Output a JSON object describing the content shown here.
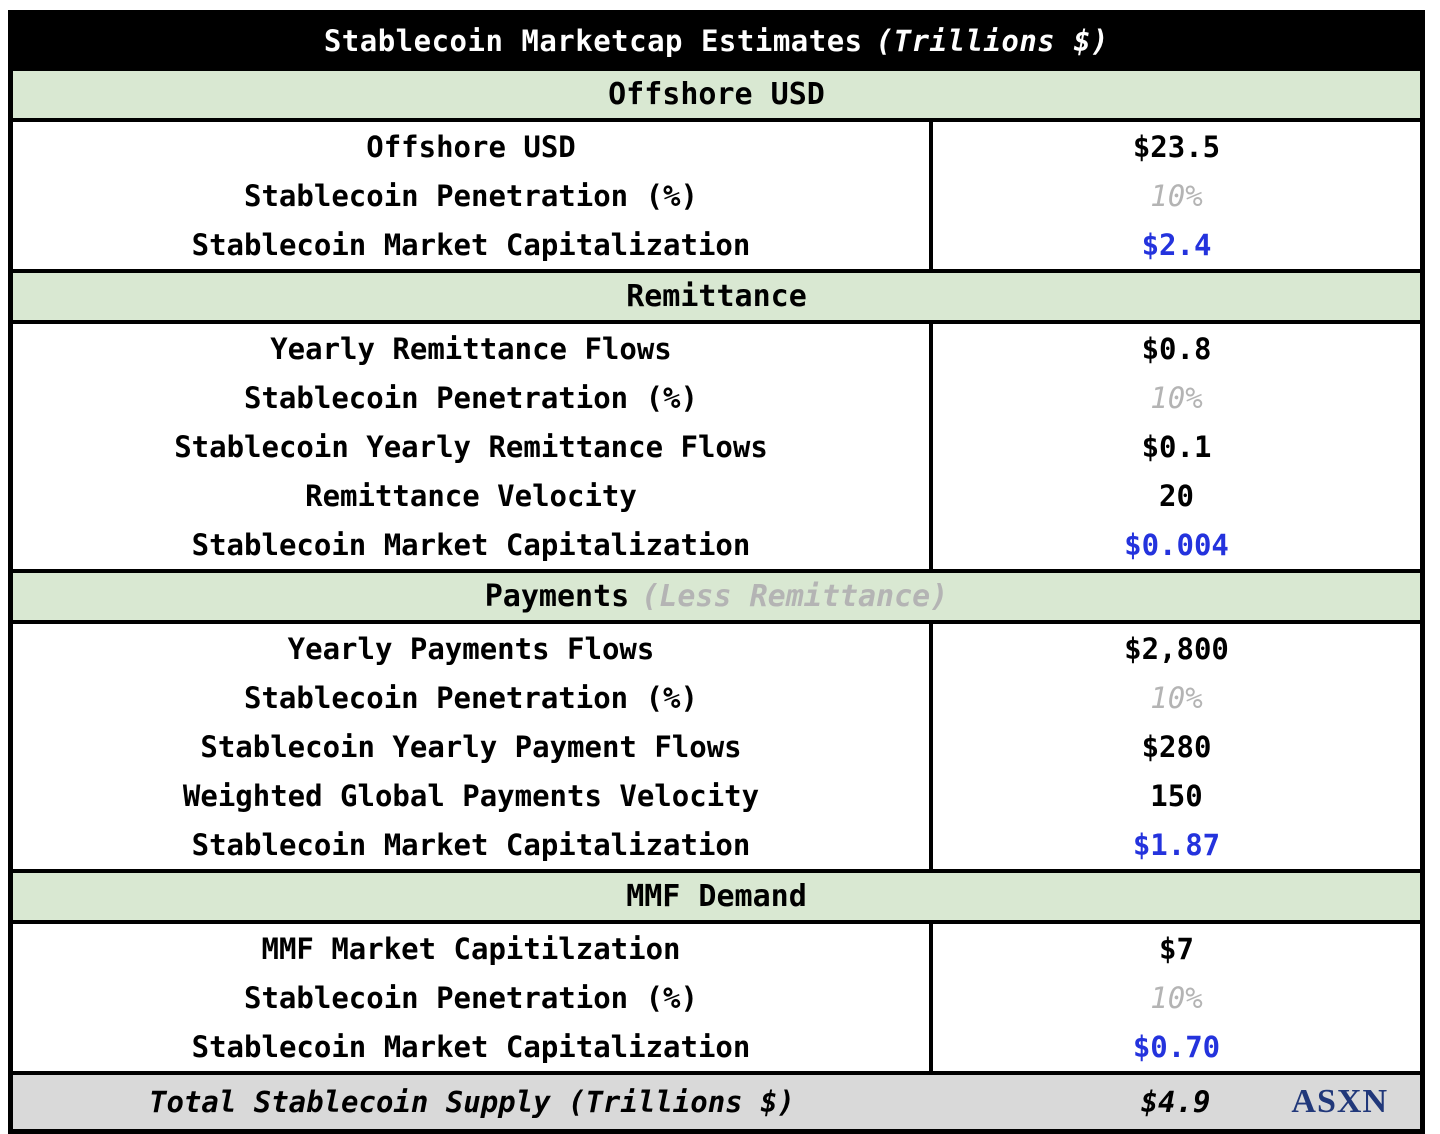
{
  "title": {
    "main": "Stablecoin Marketcap Estimates",
    "suffix": "(Trillions $)",
    "full": "Stablecoin Marketcap Estimates (Trillions $)"
  },
  "colors": {
    "title_bg": "#000000",
    "title_text": "#ffffff",
    "section_header_bg": "#d9e8d2",
    "total_row_bg": "#d9d9d9",
    "assumption_text": "#b4b4b4",
    "output_value_text": "#2433dd",
    "brand_text": "#21387a",
    "border": "#000000"
  },
  "chart_data": {
    "type": "table",
    "title": "Stablecoin Marketcap Estimates (Trillions $)",
    "columns": [
      "Metric",
      "Value"
    ],
    "sections": [
      {
        "header": {
          "label": "Offshore USD",
          "suffix": ""
        },
        "rows": [
          {
            "label": "Offshore USD",
            "value": "$23.5",
            "value_style": "input"
          },
          {
            "label": "Stablecoin Penetration (%)",
            "value": "10%",
            "value_style": "assumption"
          },
          {
            "label": "Stablecoin Market Capitalization",
            "value": "$2.4",
            "value_style": "output"
          }
        ]
      },
      {
        "header": {
          "label": "Remittance",
          "suffix": ""
        },
        "rows": [
          {
            "label": "Yearly Remittance Flows",
            "value": "$0.8",
            "value_style": "input"
          },
          {
            "label": "Stablecoin Penetration (%)",
            "value": "10%",
            "value_style": "assumption"
          },
          {
            "label": "Stablecoin Yearly Remittance Flows",
            "value": "$0.1",
            "value_style": "input"
          },
          {
            "label": "Remittance Velocity",
            "value": "20",
            "value_style": "input"
          },
          {
            "label": "Stablecoin Market Capitalization",
            "value": "$0.004",
            "value_style": "output"
          }
        ]
      },
      {
        "header": {
          "label": "Payments",
          "suffix": "(Less Remittance)"
        },
        "rows": [
          {
            "label": "Yearly Payments Flows",
            "value": "$2,800",
            "value_style": "input"
          },
          {
            "label": "Stablecoin Penetration (%)",
            "value": "10%",
            "value_style": "assumption"
          },
          {
            "label": "Stablecoin Yearly Payment Flows",
            "value": "$280",
            "value_style": "input"
          },
          {
            "label": "Weighted Global Payments Velocity",
            "value": "150",
            "value_style": "input"
          },
          {
            "label": "Stablecoin Market Capitalization",
            "value": "$1.87",
            "value_style": "output"
          }
        ]
      },
      {
        "header": {
          "label": "MMF Demand",
          "suffix": ""
        },
        "rows": [
          {
            "label": "MMF Market Capitilzation",
            "value": "$7",
            "value_style": "input"
          },
          {
            "label": "Stablecoin Penetration (%)",
            "value": "10%",
            "value_style": "assumption"
          },
          {
            "label": "Stablecoin Market Capitalization",
            "value": "$0.70",
            "value_style": "output"
          }
        ]
      }
    ],
    "total": {
      "label": "Total Stablecoin Supply (Trillions $)",
      "value": "$4.9"
    },
    "brand": "ASXN"
  }
}
